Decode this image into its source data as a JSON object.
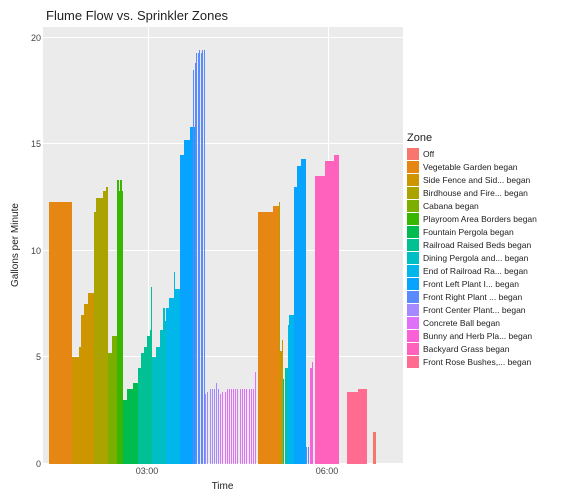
{
  "chart": {
    "type": "bar",
    "title": "Flume Flow vs. Sprinkler Zones",
    "xlabel": "Time",
    "ylabel": "Gallons per Minute",
    "title_fontsize": 13,
    "axis_label_fontsize": 10,
    "tick_fontsize": 9,
    "background": "#ffffff",
    "panel_background": "#ebebeb",
    "grid_color": "#ffffff",
    "ylim": [
      0,
      20.5
    ],
    "yticks": [
      0,
      5,
      10,
      15,
      20
    ],
    "x_range": [
      0,
      480
    ],
    "xticks": [
      {
        "pos": 140,
        "label": "03:00"
      },
      {
        "pos": 380,
        "label": "06:00"
      }
    ],
    "legend_title": "Zone",
    "legend_fontsize": 8.5,
    "zones": [
      {
        "key": "off",
        "label": "Off",
        "color": "#f8766d"
      },
      {
        "key": "veg",
        "label": "Vegetable Garden began",
        "color": "#e68613"
      },
      {
        "key": "side",
        "label": "Side Fence and Sid... began",
        "color": "#cd9600"
      },
      {
        "key": "bird",
        "label": "Birdhouse and Fire... began",
        "color": "#aba300"
      },
      {
        "key": "cab",
        "label": "Cabana began",
        "color": "#7cae00"
      },
      {
        "key": "play",
        "label": "Playroom Area Borders began",
        "color": "#39b600"
      },
      {
        "key": "fount",
        "label": "Fountain Pergola began",
        "color": "#00bb4e"
      },
      {
        "key": "rail",
        "label": "Railroad Raised Beds began",
        "color": "#00c094"
      },
      {
        "key": "din",
        "label": "Dining Pergola and... began",
        "color": "#00bfc4"
      },
      {
        "key": "erail",
        "label": "End of Railroad Ra... began",
        "color": "#00b6eb"
      },
      {
        "key": "fleft",
        "label": "Front Left Plant I... began",
        "color": "#06a4ff"
      },
      {
        "key": "fright",
        "label": "Front Right Plant ... began",
        "color": "#598bff"
      },
      {
        "key": "fcent",
        "label": "Front Center Plant... began",
        "color": "#a58aff"
      },
      {
        "key": "conc",
        "label": "Concrete Ball began",
        "color": "#df70f8"
      },
      {
        "key": "bunny",
        "label": "Bunny and Herb Pla... began",
        "color": "#fb61d7"
      },
      {
        "key": "bgrass",
        "label": "Backyard Grass began",
        "color": "#ff62bc"
      },
      {
        "key": "frose",
        "label": "Front Rose Bushes,... began",
        "color": "#ff6c90"
      }
    ],
    "bars": [
      {
        "x0": 8,
        "x1": 38,
        "y": 12.3,
        "zone": "veg"
      },
      {
        "x0": 38,
        "x1": 48,
        "y": 5.0,
        "zone": "side"
      },
      {
        "x0": 48,
        "x1": 50,
        "y": 5.5,
        "zone": "side"
      },
      {
        "x0": 50,
        "x1": 54,
        "y": 7.0,
        "zone": "side"
      },
      {
        "x0": 54,
        "x1": 62,
        "y": 7.5,
        "zone": "side"
      },
      {
        "x0": 60,
        "x1": 68,
        "y": 8.0,
        "zone": "side"
      },
      {
        "x0": 68,
        "x1": 70,
        "y": 11.8,
        "zone": "bird"
      },
      {
        "x0": 70,
        "x1": 80,
        "y": 12.5,
        "zone": "bird"
      },
      {
        "x0": 80,
        "x1": 84,
        "y": 12.8,
        "zone": "bird"
      },
      {
        "x0": 84,
        "x1": 86,
        "y": 13.0,
        "zone": "bird"
      },
      {
        "x0": 86,
        "x1": 92,
        "y": 5.2,
        "zone": "cab"
      },
      {
        "x0": 92,
        "x1": 100,
        "y": 6.0,
        "zone": "cab"
      },
      {
        "x0": 100,
        "x1": 104,
        "y": 6.4,
        "zone": "cab"
      },
      {
        "x0": 100,
        "x1": 106,
        "y": 12.8,
        "zone": "play"
      },
      {
        "x0": 99,
        "x1": 101,
        "y": 13.3,
        "zone": "play"
      },
      {
        "x0": 103,
        "x1": 105,
        "y": 13.3,
        "zone": "play"
      },
      {
        "x0": 106,
        "x1": 112,
        "y": 3.0,
        "zone": "fount"
      },
      {
        "x0": 112,
        "x1": 120,
        "y": 3.5,
        "zone": "fount"
      },
      {
        "x0": 120,
        "x1": 126,
        "y": 3.8,
        "zone": "fount"
      },
      {
        "x0": 126,
        "x1": 130,
        "y": 4.5,
        "zone": "rail"
      },
      {
        "x0": 130,
        "x1": 134,
        "y": 5.2,
        "zone": "rail"
      },
      {
        "x0": 134,
        "x1": 138,
        "y": 5.5,
        "zone": "rail"
      },
      {
        "x0": 138,
        "x1": 142,
        "y": 6.0,
        "zone": "rail"
      },
      {
        "x0": 142,
        "x1": 144,
        "y": 6.3,
        "zone": "rail"
      },
      {
        "x0": 144,
        "x1": 145,
        "y": 8.3,
        "zone": "rail"
      },
      {
        "x0": 145,
        "x1": 150,
        "y": 5.0,
        "zone": "din"
      },
      {
        "x0": 150,
        "x1": 156,
        "y": 5.5,
        "zone": "din"
      },
      {
        "x0": 156,
        "x1": 160,
        "y": 6.3,
        "zone": "din"
      },
      {
        "x0": 160,
        "x1": 164,
        "y": 6.7,
        "zone": "din"
      },
      {
        "x0": 160,
        "x1": 162,
        "y": 7.3,
        "zone": "din"
      },
      {
        "x0": 164,
        "x1": 168,
        "y": 7.3,
        "zone": "erail"
      },
      {
        "x0": 168,
        "x1": 174,
        "y": 7.8,
        "zone": "erail"
      },
      {
        "x0": 174,
        "x1": 178,
        "y": 8.2,
        "zone": "erail"
      },
      {
        "x0": 178,
        "x1": 182,
        "y": 8.2,
        "zone": "erail"
      },
      {
        "x0": 174,
        "x1": 176,
        "y": 9.0,
        "zone": "erail"
      },
      {
        "x0": 182,
        "x1": 188,
        "y": 14.5,
        "zone": "fleft"
      },
      {
        "x0": 188,
        "x1": 196,
        "y": 15.2,
        "zone": "fleft"
      },
      {
        "x0": 196,
        "x1": 202,
        "y": 15.8,
        "zone": "fleft"
      },
      {
        "x0": 200,
        "x1": 201,
        "y": 18.5,
        "zone": "fright"
      },
      {
        "x0": 202,
        "x1": 203,
        "y": 18.8,
        "zone": "fright"
      },
      {
        "x0": 204,
        "x1": 205,
        "y": 19.3,
        "zone": "fright"
      },
      {
        "x0": 206,
        "x1": 207,
        "y": 19.3,
        "zone": "fright"
      },
      {
        "x0": 208,
        "x1": 209,
        "y": 19.4,
        "zone": "fright"
      },
      {
        "x0": 210,
        "x1": 211,
        "y": 19.3,
        "zone": "fright"
      },
      {
        "x0": 212,
        "x1": 213,
        "y": 19.4,
        "zone": "fright"
      },
      {
        "x0": 214,
        "x1": 215,
        "y": 19.4,
        "zone": "fright"
      },
      {
        "x0": 216,
        "x1": 217,
        "y": 3.3,
        "zone": "fcent"
      },
      {
        "x0": 219,
        "x1": 220,
        "y": 3.4,
        "zone": "fcent"
      },
      {
        "x0": 222,
        "x1": 223,
        "y": 3.5,
        "zone": "fcent"
      },
      {
        "x0": 225,
        "x1": 226,
        "y": 3.5,
        "zone": "fcent"
      },
      {
        "x0": 228,
        "x1": 229,
        "y": 3.5,
        "zone": "fcent"
      },
      {
        "x0": 231,
        "x1": 232,
        "y": 3.8,
        "zone": "fcent"
      },
      {
        "x0": 233,
        "x1": 234,
        "y": 3.5,
        "zone": "fcent"
      },
      {
        "x0": 236,
        "x1": 237,
        "y": 3.3,
        "zone": "conc"
      },
      {
        "x0": 239,
        "x1": 240,
        "y": 3.4,
        "zone": "conc"
      },
      {
        "x0": 242,
        "x1": 243,
        "y": 3.4,
        "zone": "conc"
      },
      {
        "x0": 245,
        "x1": 246,
        "y": 3.5,
        "zone": "conc"
      },
      {
        "x0": 248,
        "x1": 249,
        "y": 3.5,
        "zone": "conc"
      },
      {
        "x0": 251,
        "x1": 252,
        "y": 3.5,
        "zone": "conc"
      },
      {
        "x0": 253,
        "x1": 254,
        "y": 3.5,
        "zone": "conc"
      },
      {
        "x0": 256,
        "x1": 257,
        "y": 3.5,
        "zone": "conc"
      },
      {
        "x0": 259,
        "x1": 260,
        "y": 3.5,
        "zone": "conc"
      },
      {
        "x0": 262,
        "x1": 263,
        "y": 3.5,
        "zone": "conc"
      },
      {
        "x0": 265,
        "x1": 266,
        "y": 3.5,
        "zone": "conc"
      },
      {
        "x0": 268,
        "x1": 269,
        "y": 3.5,
        "zone": "conc"
      },
      {
        "x0": 271,
        "x1": 272,
        "y": 3.5,
        "zone": "conc"
      },
      {
        "x0": 274,
        "x1": 275,
        "y": 3.5,
        "zone": "conc"
      },
      {
        "x0": 277,
        "x1": 278,
        "y": 3.5,
        "zone": "conc"
      },
      {
        "x0": 280,
        "x1": 281,
        "y": 3.5,
        "zone": "conc"
      },
      {
        "x0": 283,
        "x1": 284,
        "y": 3.6,
        "zone": "conc"
      },
      {
        "x0": 282,
        "x1": 283,
        "y": 4.3,
        "zone": "conc"
      },
      {
        "x0": 286,
        "x1": 306,
        "y": 11.8,
        "zone": "veg"
      },
      {
        "x0": 306,
        "x1": 314,
        "y": 12.1,
        "zone": "veg"
      },
      {
        "x0": 314,
        "x1": 316,
        "y": 12.3,
        "zone": "bird"
      },
      {
        "x0": 314,
        "x1": 318,
        "y": 5.3,
        "zone": "side"
      },
      {
        "x0": 318,
        "x1": 320,
        "y": 5.8,
        "zone": "side"
      },
      {
        "x0": 320,
        "x1": 322,
        "y": 4.0,
        "zone": "rail"
      },
      {
        "x0": 322,
        "x1": 326,
        "y": 4.5,
        "zone": "rail"
      },
      {
        "x0": 324,
        "x1": 328,
        "y": 4.5,
        "zone": "din"
      },
      {
        "x0": 326,
        "x1": 328,
        "y": 6.5,
        "zone": "erail"
      },
      {
        "x0": 328,
        "x1": 332,
        "y": 7.0,
        "zone": "erail"
      },
      {
        "x0": 330,
        "x1": 334,
        "y": 7.0,
        "zone": "erail"
      },
      {
        "x0": 334,
        "x1": 338,
        "y": 13.0,
        "zone": "fleft"
      },
      {
        "x0": 338,
        "x1": 344,
        "y": 14.0,
        "zone": "fleft"
      },
      {
        "x0": 344,
        "x1": 350,
        "y": 14.3,
        "zone": "fleft"
      },
      {
        "x0": 350,
        "x1": 352,
        "y": 0.8,
        "zone": "fright"
      },
      {
        "x0": 353,
        "x1": 354,
        "y": 0.8,
        "zone": "fright"
      },
      {
        "x0": 356,
        "x1": 358,
        "y": 4.5,
        "zone": "bunny"
      },
      {
        "x0": 358,
        "x1": 360,
        "y": 4.8,
        "zone": "bunny"
      },
      {
        "x0": 363,
        "x1": 376,
        "y": 13.5,
        "zone": "bgrass"
      },
      {
        "x0": 376,
        "x1": 388,
        "y": 14.2,
        "zone": "bgrass"
      },
      {
        "x0": 388,
        "x1": 394,
        "y": 14.5,
        "zone": "bgrass"
      },
      {
        "x0": 405,
        "x1": 420,
        "y": 3.4,
        "zone": "frose"
      },
      {
        "x0": 420,
        "x1": 432,
        "y": 3.5,
        "zone": "frose"
      },
      {
        "x0": 440,
        "x1": 444,
        "y": 1.5,
        "zone": "off"
      }
    ]
  }
}
